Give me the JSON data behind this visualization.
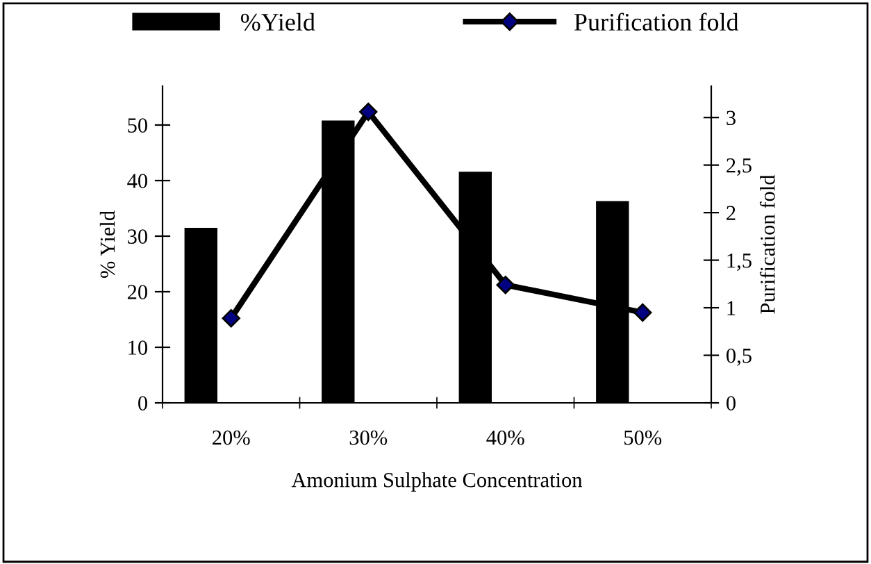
{
  "chart_data": {
    "type": "bar",
    "xlabel": "Amonium Sulphate Concentration",
    "ylabel": "% Yield",
    "y2label": "Purification fold",
    "categories": [
      "20%",
      "30%",
      "40%",
      "50%"
    ],
    "series": [
      {
        "name": "%Yield",
        "color": "#000000",
        "values": [
          31.5,
          50.8,
          41.6,
          36.3
        ]
      },
      {
        "name": "Purification fold",
        "type": "line",
        "axis": "y2",
        "color": "#000080",
        "values": [
          0.89,
          3.06,
          1.24,
          0.95
        ]
      }
    ],
    "ylim": [
      0,
      57
    ],
    "yticks": [
      0,
      10,
      20,
      30,
      40,
      50
    ],
    "y2lim": [
      0,
      3.33
    ],
    "y2ticks": [
      0,
      {
        "value": 0.5,
        "label": "0,5"
      },
      1,
      {
        "value": 1.5,
        "label": "1,5"
      },
      2,
      {
        "value": 2.5,
        "label": "2,5"
      },
      3
    ],
    "marker": "diamond",
    "line_style": "solid",
    "legend": "top",
    "grid": false
  }
}
